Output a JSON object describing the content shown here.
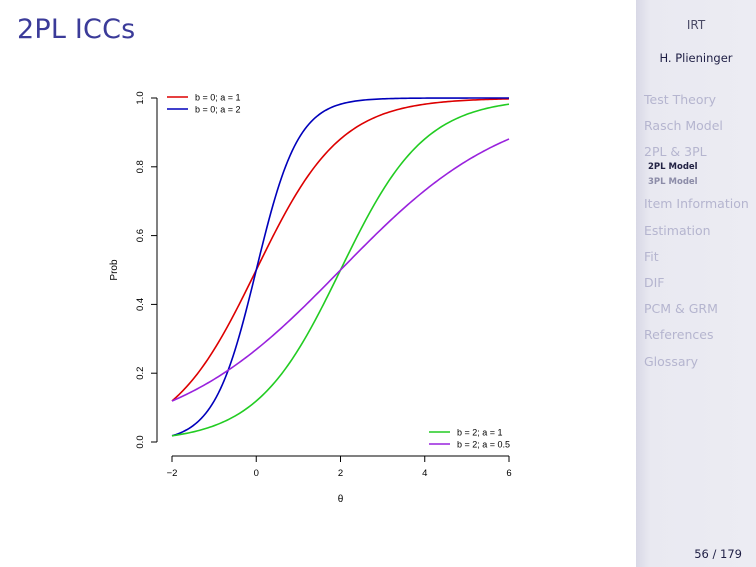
{
  "slide": {
    "title": "2PL ICCs",
    "page": "56 / 179"
  },
  "sidebar": {
    "title": "IRT",
    "author": "H. Plieninger",
    "sections": [
      {
        "label": "Test Theory"
      },
      {
        "label": "Rasch Model"
      },
      {
        "label": "2PL & 3PL",
        "current": true,
        "subsections": [
          {
            "label": "2PL Model",
            "current": true
          },
          {
            "label": "3PL Model"
          }
        ]
      },
      {
        "label": "Item Information"
      },
      {
        "label": "Estimation"
      },
      {
        "label": "Fit"
      },
      {
        "label": "DIF"
      },
      {
        "label": "PCM & GRM"
      },
      {
        "label": "References"
      },
      {
        "label": "Glossary"
      }
    ]
  },
  "chart_data": {
    "type": "line",
    "xlabel": "θ",
    "ylabel": "Prob",
    "xlim": [
      -2,
      6
    ],
    "ylim": [
      0,
      1
    ],
    "xticks": [
      -2,
      0,
      2,
      4,
      6
    ],
    "xtick_labels": [
      "−2",
      "0",
      "2",
      "4",
      "6"
    ],
    "yticks": [
      0.0,
      0.2,
      0.4,
      0.6,
      0.8,
      1.0
    ],
    "ytick_labels": [
      "0.0",
      "0.2",
      "0.4",
      "0.6",
      "0.8",
      "1.0"
    ],
    "legends": [
      {
        "placement": "top-left",
        "entries": [
          0,
          1
        ]
      },
      {
        "placement": "bottom-right",
        "entries": [
          2,
          3
        ]
      }
    ],
    "series": [
      {
        "name": "b = 0; a = 1",
        "b": 0,
        "a": 1,
        "color": "#dd0000"
      },
      {
        "name": "b = 0; a = 2",
        "b": 0,
        "a": 2,
        "color": "#0000bb"
      },
      {
        "name": "b = 2; a = 1",
        "b": 2,
        "a": 1,
        "color": "#22cc22"
      },
      {
        "name": "b = 2; a = 0.5",
        "b": 2,
        "a": 0.5,
        "color": "#9922dd"
      }
    ]
  }
}
